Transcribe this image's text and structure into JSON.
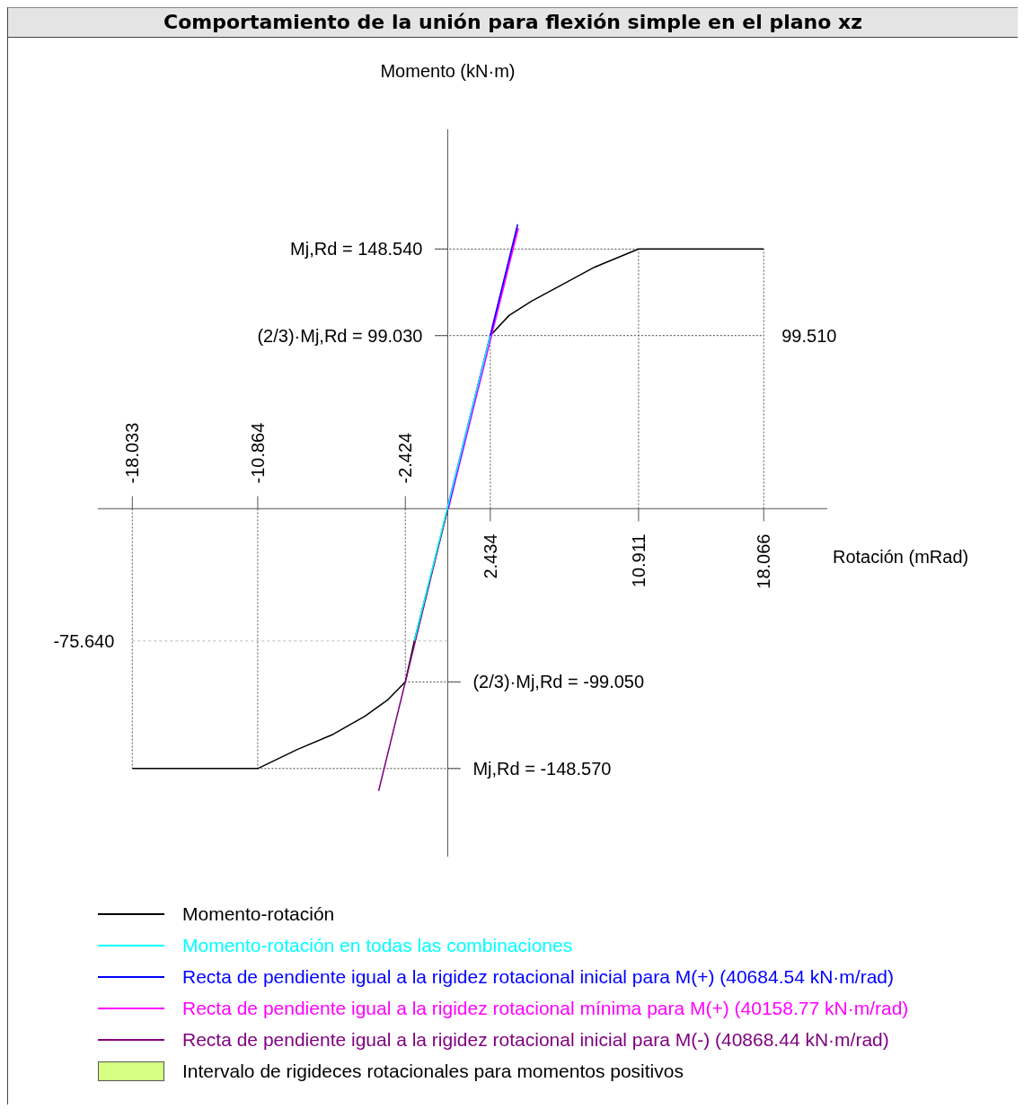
{
  "chart_data": {
    "type": "line",
    "title": "Comportamiento de la unión para flexión simple en el plano xz",
    "xlabel": "Rotación (mRad)",
    "ylabel": "Momento (kN·m)",
    "xlim": [
      -20,
      21.7
    ],
    "ylim": [
      -199,
      217
    ],
    "x2lim": [
      -20,
      21.7
    ],
    "xticks": [
      2.434,
      10.911,
      18.066
    ],
    "x2ticks": [
      -18.033,
      -10.864,
      -2.424
    ],
    "ref_lines": [
      {
        "axis": "y",
        "value": 148.54,
        "label": "Mj,Rd = 148.540",
        "line_style": "dotted",
        "color": "#444444"
      },
      {
        "axis": "y",
        "value": 99.03,
        "label": "(2/3)·Mj,Rd = 99.030",
        "line_style": "dotted",
        "color": "#444444"
      },
      {
        "axis": "y",
        "value": -99.05,
        "label": "(2/3)·Mj,Rd = -99.050",
        "line_style": "dotted",
        "color": "#444444"
      },
      {
        "axis": "y",
        "value": -148.57,
        "label": "Mj,Rd = -148.570",
        "line_style": "dotted",
        "color": "#444444"
      },
      {
        "axis": "y",
        "value": -75.64,
        "label": "-75.640",
        "line_style": "dashed",
        "color": "#bbbbbb"
      }
    ],
    "legend": "bottom",
    "annotations": [
      "Intervalo de rigideces rotacionales para momentos positivos",
      {
        "text": "99.510",
        "x": 18.066,
        "y": 99.03
      }
    ],
    "series": [
      {
        "name": "Momento-rotación",
        "color": "#000000",
        "x": [
          -18.033,
          -10.864,
          -8.6,
          -6.55,
          -4.74,
          -3.45,
          -2.424,
          -1.91,
          0,
          2.434,
          3.5,
          4.79,
          6.6,
          8.4,
          10.911,
          18.066
        ],
        "values": [
          -148.57,
          -148.57,
          -137.7,
          -129,
          -118.7,
          -109.5,
          -99.05,
          -75.64,
          0,
          99.03,
          110.5,
          118.7,
          128.5,
          138.2,
          148.54,
          148.54
        ]
      },
      {
        "name": "Momento-rotación en todas las combinaciones",
        "color": "#00ffff",
        "x": [
          -1.91,
          2.434
        ],
        "values": [
          -75.64,
          99.03
        ]
      },
      {
        "name": "Recta de pendiente igual a la rigidez rotacional inicial para M(+) (40684.54 kN·m/rad)",
        "color": "#0000ff",
        "x": [
          0,
          4.0
        ],
        "values": [
          0,
          162.7
        ]
      },
      {
        "name": "Recta de pendiente igual a la rigidez rotacional mínima para M(+) (40158.77 kN·m/rad)",
        "color": "#ff00ff",
        "x": [
          0,
          4.0
        ],
        "values": [
          0,
          160.6
        ]
      },
      {
        "name": "Recta de pendiente igual a la rigidez rotacional inicial para M(-) (40868.44 kN·m/rad)",
        "color": "#800080",
        "x": [
          0,
          -3.95
        ],
        "values": [
          0,
          -161.4
        ]
      }
    ]
  }
}
